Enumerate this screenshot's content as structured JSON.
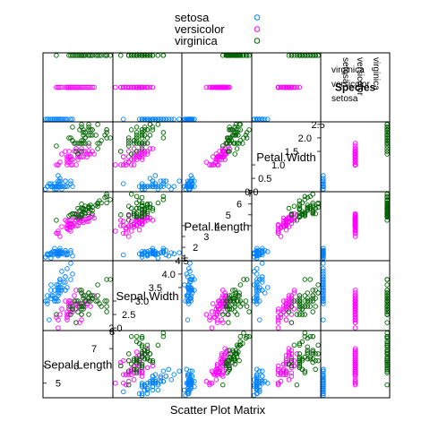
{
  "chart_data": {
    "type": "scatter",
    "title": "",
    "xlabel": "Scatter Plot Matrix",
    "legend": {
      "placement": "top",
      "entries": [
        "setosa",
        "versicolor",
        "virginica"
      ]
    },
    "colors": {
      "setosa": "#0080ff",
      "versicolor": "#ff00ff",
      "virginica": "#006400"
    },
    "variables": [
      {
        "name": "Sepal.Length",
        "range": [
          4.3,
          7.9
        ],
        "upper_ticks": [
          "7",
          "8"
        ],
        "lower_ticks": [
          "5",
          "6"
        ],
        "upper_tick_values": [
          7,
          8
        ],
        "lower_tick_values": [
          5,
          6
        ]
      },
      {
        "name": "Sepal.Width",
        "range": [
          2.0,
          4.4
        ],
        "upper_ticks": [
          "3.5",
          "4.0",
          "4.5"
        ],
        "lower_ticks": [
          "2.0",
          "2.5",
          "3.0"
        ],
        "upper_tick_values": [
          3.5,
          4.0,
          4.5
        ],
        "lower_tick_values": [
          2.0,
          2.5,
          3.0
        ]
      },
      {
        "name": "Petal.Length",
        "range": [
          1.0,
          6.9
        ],
        "upper_ticks": [
          "4",
          "5",
          "6",
          "7"
        ],
        "lower_ticks": [
          "1",
          "2",
          "3",
          "4"
        ],
        "upper_tick_values": [
          4,
          5,
          6,
          7
        ],
        "lower_tick_values": [
          1,
          2,
          3,
          4
        ]
      },
      {
        "name": "Petal.Width",
        "range": [
          0.1,
          2.5
        ],
        "upper_ticks": [
          "1.5",
          "2.0",
          "2.5"
        ],
        "lower_ticks": [
          "0.0",
          "0.5",
          "1.0"
        ],
        "upper_tick_values": [
          1.5,
          2.0,
          2.5
        ],
        "lower_tick_values": [
          0.0,
          0.5,
          1.0
        ]
      },
      {
        "name": "Species",
        "range": [
          1,
          3
        ],
        "levels": [
          "setosa",
          "versicolor",
          "virginica"
        ]
      }
    ],
    "series": [
      {
        "name": "setosa",
        "Sepal.Length": [
          5.1,
          4.9,
          4.7,
          4.6,
          5.0,
          5.4,
          4.6,
          5.0,
          4.4,
          4.9,
          5.4,
          4.8,
          4.8,
          4.3,
          5.8,
          5.7,
          5.4,
          5.1,
          5.7,
          5.1,
          5.4,
          5.1,
          4.6,
          5.1,
          4.8,
          5.0,
          5.0,
          5.2,
          5.2,
          4.7,
          4.8,
          5.4,
          5.2,
          5.5,
          4.9,
          5.0,
          5.5,
          4.9,
          4.4,
          5.1,
          5.0,
          4.5,
          4.4,
          5.0,
          5.1,
          4.8,
          5.1,
          4.6,
          5.3,
          5.0
        ],
        "Sepal.Width": [
          3.5,
          3.0,
          3.2,
          3.1,
          3.6,
          3.9,
          3.4,
          3.4,
          2.9,
          3.1,
          3.7,
          3.4,
          3.0,
          3.0,
          4.0,
          4.4,
          3.9,
          3.5,
          3.8,
          3.8,
          3.4,
          3.7,
          3.6,
          3.3,
          3.4,
          3.0,
          3.4,
          3.5,
          3.4,
          3.2,
          3.1,
          3.4,
          4.1,
          4.2,
          3.1,
          3.2,
          3.5,
          3.6,
          3.0,
          3.4,
          3.5,
          2.3,
          3.2,
          3.5,
          3.8,
          3.0,
          3.8,
          3.2,
          3.7,
          3.3
        ],
        "Petal.Length": [
          1.4,
          1.4,
          1.3,
          1.5,
          1.4,
          1.7,
          1.4,
          1.5,
          1.4,
          1.5,
          1.5,
          1.6,
          1.4,
          1.1,
          1.2,
          1.5,
          1.3,
          1.4,
          1.7,
          1.5,
          1.7,
          1.5,
          1.0,
          1.7,
          1.9,
          1.6,
          1.6,
          1.5,
          1.4,
          1.6,
          1.6,
          1.5,
          1.5,
          1.4,
          1.5,
          1.2,
          1.3,
          1.4,
          1.3,
          1.5,
          1.3,
          1.3,
          1.3,
          1.6,
          1.9,
          1.4,
          1.6,
          1.4,
          1.5,
          1.4
        ],
        "Petal.Width": [
          0.2,
          0.2,
          0.2,
          0.2,
          0.2,
          0.4,
          0.3,
          0.2,
          0.2,
          0.1,
          0.2,
          0.2,
          0.1,
          0.1,
          0.2,
          0.4,
          0.4,
          0.3,
          0.3,
          0.3,
          0.2,
          0.4,
          0.2,
          0.5,
          0.2,
          0.2,
          0.4,
          0.2,
          0.2,
          0.2,
          0.2,
          0.4,
          0.1,
          0.2,
          0.2,
          0.2,
          0.2,
          0.1,
          0.2,
          0.2,
          0.3,
          0.3,
          0.2,
          0.6,
          0.4,
          0.3,
          0.2,
          0.2,
          0.2,
          0.2
        ]
      },
      {
        "name": "versicolor",
        "Sepal.Length": [
          7.0,
          6.4,
          6.9,
          5.5,
          6.5,
          5.7,
          6.3,
          4.9,
          6.6,
          5.2,
          5.0,
          5.9,
          6.0,
          6.1,
          5.6,
          6.7,
          5.6,
          5.8,
          6.2,
          5.6,
          5.9,
          6.1,
          6.3,
          6.1,
          6.4,
          6.6,
          6.8,
          6.7,
          6.0,
          5.7,
          5.5,
          5.5,
          5.8,
          6.0,
          5.4,
          6.0,
          6.7,
          6.3,
          5.6,
          5.5,
          5.5,
          6.1,
          5.8,
          5.0,
          5.6,
          5.7,
          5.7,
          6.2,
          5.1,
          5.7
        ],
        "Sepal.Width": [
          3.2,
          3.2,
          3.1,
          2.3,
          2.8,
          2.8,
          3.3,
          2.4,
          2.9,
          2.7,
          2.0,
          3.0,
          2.2,
          2.9,
          2.9,
          3.1,
          3.0,
          2.7,
          2.2,
          2.5,
          3.2,
          2.8,
          2.5,
          2.8,
          2.9,
          3.0,
          2.8,
          3.0,
          2.9,
          2.6,
          2.4,
          2.4,
          2.7,
          2.7,
          3.0,
          3.4,
          3.1,
          2.3,
          3.0,
          2.5,
          2.6,
          3.0,
          2.6,
          2.3,
          2.7,
          3.0,
          2.9,
          2.9,
          2.5,
          2.8
        ],
        "Petal.Length": [
          4.7,
          4.5,
          4.9,
          4.0,
          4.6,
          4.5,
          4.7,
          3.3,
          4.6,
          3.9,
          3.5,
          4.2,
          4.0,
          4.7,
          3.6,
          4.4,
          4.5,
          4.1,
          4.5,
          3.9,
          4.8,
          4.0,
          4.9,
          4.7,
          4.3,
          4.4,
          4.8,
          5.0,
          4.5,
          3.5,
          3.8,
          3.7,
          3.9,
          5.1,
          4.5,
          4.5,
          4.7,
          4.4,
          4.1,
          4.0,
          4.4,
          4.6,
          4.0,
          3.3,
          4.2,
          4.2,
          4.2,
          4.3,
          3.0,
          4.1
        ],
        "Petal.Width": [
          1.4,
          1.5,
          1.5,
          1.3,
          1.5,
          1.3,
          1.6,
          1.0,
          1.3,
          1.4,
          1.0,
          1.5,
          1.0,
          1.4,
          1.3,
          1.4,
          1.5,
          1.0,
          1.5,
          1.1,
          1.8,
          1.3,
          1.5,
          1.2,
          1.3,
          1.4,
          1.4,
          1.7,
          1.5,
          1.0,
          1.1,
          1.0,
          1.2,
          1.6,
          1.5,
          1.6,
          1.5,
          1.3,
          1.3,
          1.3,
          1.2,
          1.4,
          1.2,
          1.0,
          1.3,
          1.2,
          1.3,
          1.3,
          1.1,
          1.3
        ]
      },
      {
        "name": "virginica",
        "Sepal.Length": [
          6.3,
          5.8,
          7.1,
          6.3,
          6.5,
          7.6,
          4.9,
          7.3,
          6.7,
          7.2,
          6.5,
          6.4,
          6.8,
          5.7,
          5.8,
          6.4,
          6.5,
          7.7,
          7.7,
          6.0,
          6.9,
          5.6,
          7.7,
          6.3,
          6.7,
          7.2,
          6.2,
          6.1,
          6.4,
          7.2,
          7.4,
          7.9,
          6.4,
          6.3,
          6.1,
          7.7,
          6.3,
          6.4,
          6.0,
          6.9,
          6.7,
          6.9,
          5.8,
          6.8,
          6.7,
          6.7,
          6.3,
          6.5,
          6.2,
          5.9
        ],
        "Sepal.Width": [
          3.3,
          2.7,
          3.0,
          2.9,
          3.0,
          3.0,
          2.5,
          2.9,
          2.5,
          3.6,
          3.2,
          2.7,
          3.0,
          2.5,
          2.8,
          3.2,
          3.0,
          3.8,
          2.6,
          2.2,
          3.2,
          2.8,
          2.8,
          2.7,
          3.3,
          3.2,
          2.8,
          3.0,
          2.8,
          3.0,
          2.8,
          3.8,
          2.8,
          2.8,
          2.6,
          3.0,
          3.4,
          3.1,
          3.0,
          3.1,
          3.1,
          3.1,
          2.7,
          3.2,
          3.3,
          3.0,
          2.5,
          3.0,
          3.4,
          3.0
        ],
        "Petal.Length": [
          6.0,
          5.1,
          5.9,
          5.6,
          5.8,
          6.6,
          4.5,
          6.3,
          5.8,
          6.1,
          5.1,
          5.3,
          5.5,
          5.0,
          5.1,
          5.3,
          5.5,
          6.7,
          6.9,
          5.0,
          5.7,
          4.9,
          6.7,
          4.9,
          5.7,
          6.0,
          4.8,
          4.9,
          5.6,
          5.8,
          6.1,
          6.4,
          5.6,
          5.1,
          5.6,
          6.1,
          5.6,
          5.5,
          4.8,
          5.4,
          5.6,
          5.1,
          5.1,
          5.9,
          5.7,
          5.2,
          5.0,
          5.2,
          5.4,
          5.1
        ],
        "Petal.Width": [
          2.5,
          1.9,
          2.1,
          1.8,
          2.2,
          2.1,
          1.7,
          1.8,
          1.8,
          2.5,
          2.0,
          1.9,
          2.1,
          2.0,
          2.4,
          2.3,
          1.8,
          2.2,
          2.3,
          1.5,
          2.3,
          2.0,
          2.0,
          1.8,
          2.1,
          1.8,
          1.8,
          1.8,
          2.1,
          1.6,
          1.9,
          2.0,
          2.2,
          1.5,
          1.4,
          2.3,
          2.4,
          1.8,
          1.8,
          2.1,
          2.4,
          2.3,
          1.9,
          2.3,
          2.5,
          2.3,
          1.9,
          2.0,
          2.3,
          1.8
        ]
      }
    ]
  }
}
